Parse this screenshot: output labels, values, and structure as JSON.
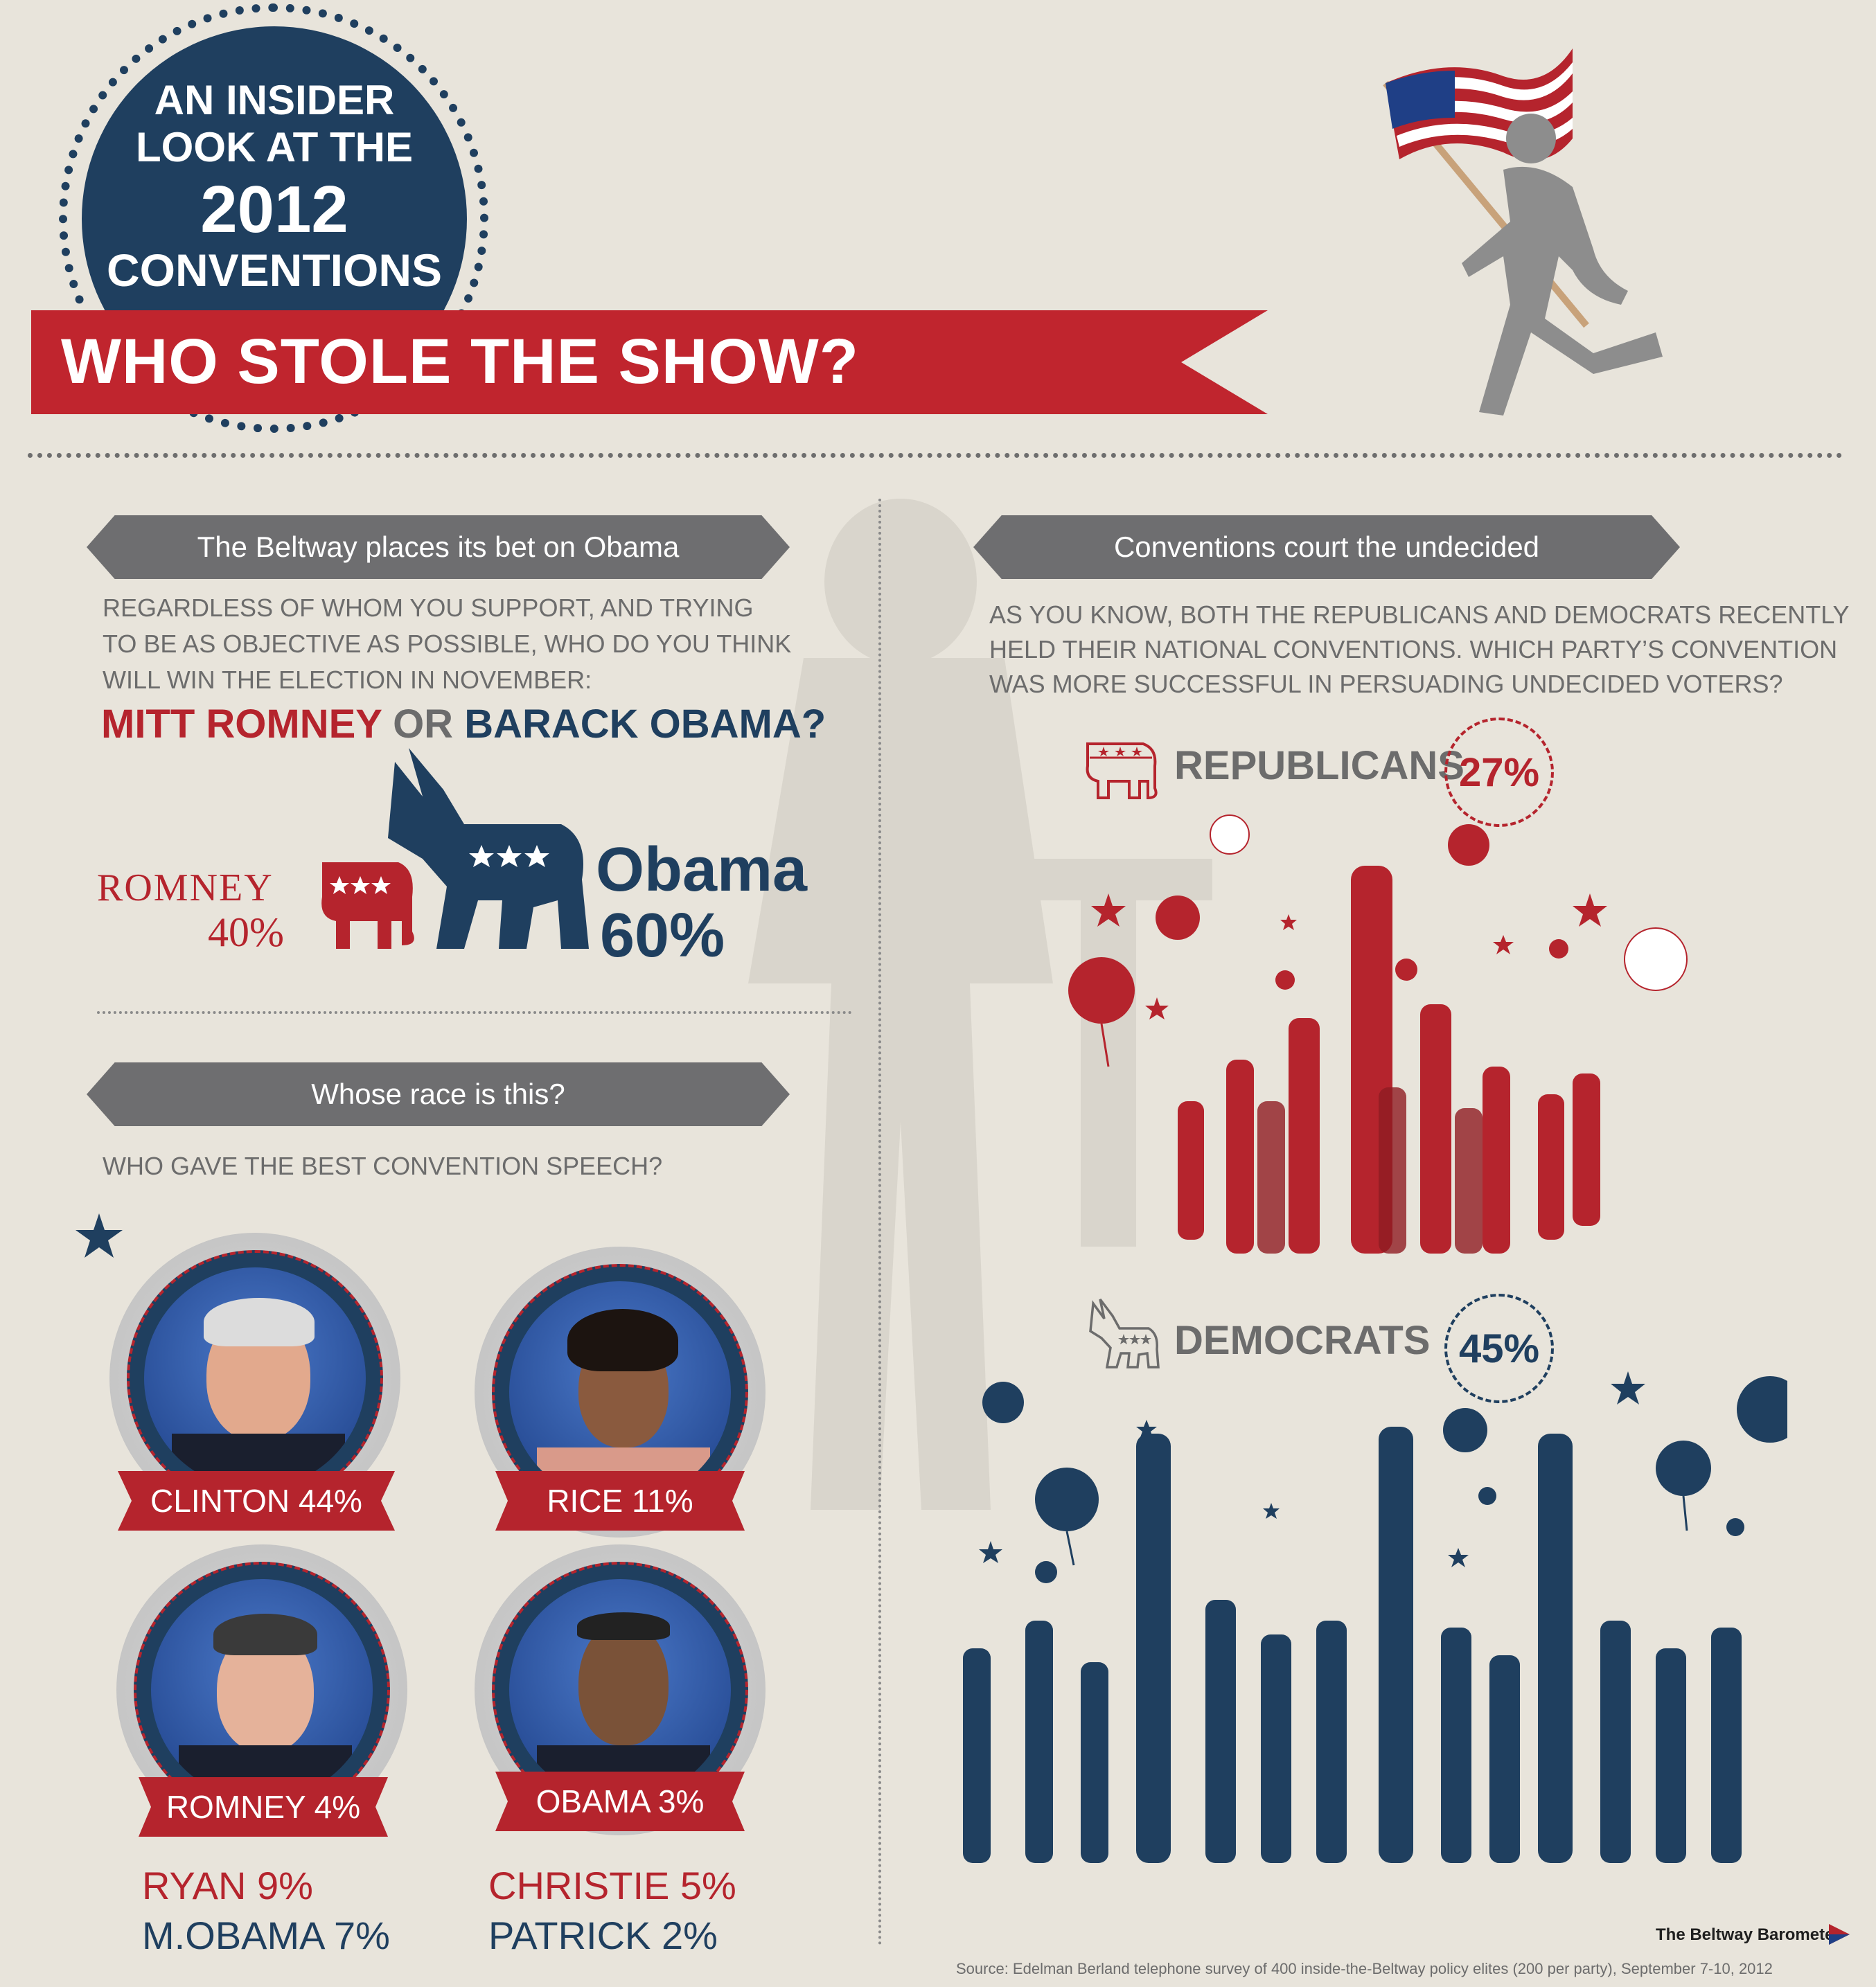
{
  "header": {
    "badge_line1": "AN INSIDER",
    "badge_line2": "LOOK AT THE",
    "badge_year": "2012",
    "badge_line4": "CONVENTIONS",
    "title": "WHO STOLE THE SHOW?"
  },
  "section_bet": {
    "heading": "The Beltway places its bet on Obama",
    "question_l1": "REGARDLESS OF WHOM YOU SUPPORT, AND TRYING",
    "question_l2": "TO BE AS OBJECTIVE AS POSSIBLE, WHO DO YOU THINK",
    "question_l3": "WILL WIN THE ELECTION IN NOVEMBER:",
    "choice_romney": "MITT ROMNEY",
    "choice_or": "OR",
    "choice_obama": "BARACK OBAMA?",
    "romney_label": "ROMNEY",
    "romney_pct": "40%",
    "obama_label": "Obama",
    "obama_pct": "60%"
  },
  "section_race": {
    "heading": "Whose race is this?",
    "question": "WHO GAVE THE BEST CONVENTION SPEECH?",
    "medals": [
      {
        "label": "CLINTON 44%"
      },
      {
        "label": "RICE 11%"
      },
      {
        "label": "ROMNEY 4%"
      },
      {
        "label": "OBAMA 3%"
      }
    ],
    "others_left_red": "RYAN 9%",
    "others_left_navy": "M.OBAMA 7%",
    "others_right_red": "CHRISTIE 5%",
    "others_right_navy": "PATRICK 2%"
  },
  "section_undecided": {
    "heading": "Conventions court the undecided",
    "question_l1": "AS YOU KNOW, BOTH THE REPUBLICANS AND DEMOCRATS RECENTLY",
    "question_l2": "HELD THEIR NATIONAL CONVENTIONS. WHICH PARTY’S CONVENTION",
    "question_l3": "WAS MORE SUCCESSFUL IN PERSUADING UNDECIDED VOTERS?",
    "rep_label": "REPUBLICANS",
    "rep_pct": "27%",
    "dem_label": "DEMOCRATS",
    "dem_pct": "45%"
  },
  "footer": {
    "brand": "The Beltway Barometer",
    "source": "Source: Edelman Berland telephone survey of 400 inside-the-Beltway policy elites (200 per party), September 7-10, 2012"
  },
  "colors": {
    "background": "#e8e4db",
    "republican_red": "#b5242d",
    "democrat_navy": "#1f3f5f",
    "ribbon_gray": "#6e6e70"
  }
}
